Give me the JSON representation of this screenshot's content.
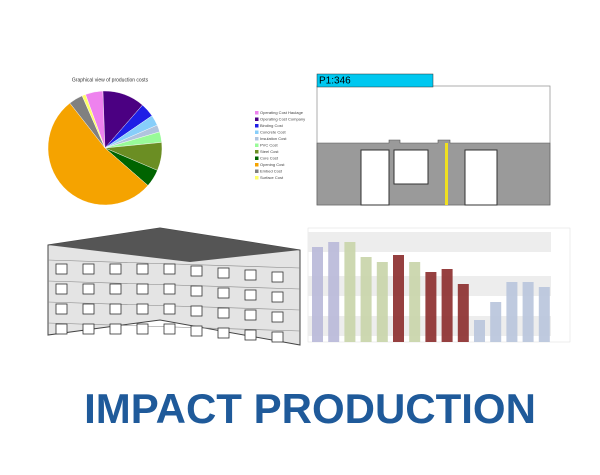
{
  "pie": {
    "title": "Graphical view of production costs",
    "slices": [
      {
        "name": "Operating Cost Haulage",
        "color": "#ee82ee",
        "value": 5
      },
      {
        "name": "Operating Cost Company",
        "color": "#4b0082",
        "value": 12
      },
      {
        "name": "Binding Cost",
        "color": "#1e1ee6",
        "value": 4
      },
      {
        "name": "Concrete Cost",
        "color": "#87cefa",
        "value": 3
      },
      {
        "name": "Insulation Cost",
        "color": "#b0c4de",
        "value": 2
      },
      {
        "name": "PVC Cost",
        "color": "#98fb98",
        "value": 3
      },
      {
        "name": "Steel Cost",
        "color": "#6b8e23",
        "value": 8
      },
      {
        "name": "Core Cost",
        "color": "#006400",
        "value": 5
      },
      {
        "name": "Opening Cost",
        "color": "#f5a300",
        "value": 53
      },
      {
        "name": "Embed Cost",
        "color": "#808080",
        "value": 4
      },
      {
        "name": "Surface Cost",
        "color": "#ffff66",
        "value": 1
      }
    ]
  },
  "drawing": {
    "label": "P1:346"
  },
  "bars": {
    "ylim": [
      0,
      110
    ],
    "values": [
      95,
      100,
      100,
      85,
      80,
      87,
      80,
      70,
      73,
      58,
      22,
      40,
      60,
      60,
      55
    ],
    "colors": [
      "#b8b8d8",
      "#b8b8d8",
      "#c8d4a8",
      "#c8d4a8",
      "#c8d4a8",
      "#8b2b2b",
      "#c8d4a8",
      "#8b2b2b",
      "#8b2b2b",
      "#8b2b2b",
      "#b8c4dc",
      "#b8c4dc",
      "#b8c4dc",
      "#b8c4dc",
      "#b8c4dc"
    ]
  },
  "title": "IMPACT PRODUCTION"
}
